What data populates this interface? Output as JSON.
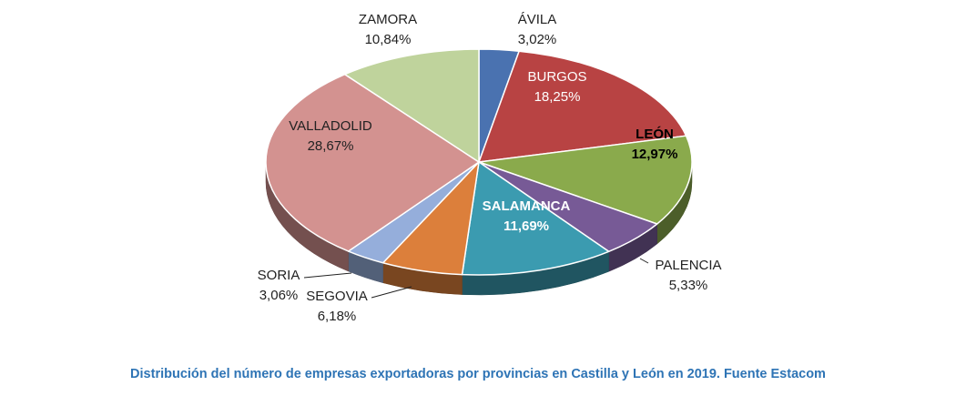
{
  "caption": "Distribución del número de empresas exportadoras por provincias en Castilla y León en 2019. Fuente Estacom",
  "chart_data": {
    "type": "pie",
    "style": "3d-exploded-label",
    "legend": "none",
    "slices": [
      {
        "name": "ÁVILA",
        "value": 3.02,
        "label": "3,02%",
        "color": "#4a72b0"
      },
      {
        "name": "BURGOS",
        "value": 18.25,
        "label": "18,25%",
        "color": "#b84343"
      },
      {
        "name": "LEÓN",
        "value": 12.97,
        "label": "12,97%",
        "color": "#8aaa4c"
      },
      {
        "name": "PALENCIA",
        "value": 5.33,
        "label": "5,33%",
        "color": "#775a96"
      },
      {
        "name": "SALAMANCA",
        "value": 11.69,
        "label": "11,69%",
        "color": "#3b9bb0"
      },
      {
        "name": "SEGOVIA",
        "value": 6.18,
        "label": "6,18%",
        "color": "#dc7f3b"
      },
      {
        "name": "SORIA",
        "value": 3.06,
        "label": "3,06%",
        "color": "#95aedb"
      },
      {
        "name": "VALLADOLID",
        "value": 28.67,
        "label": "28,67%",
        "color": "#d39290"
      },
      {
        "name": "ZAMORA",
        "value": 10.84,
        "label": "10,84%",
        "color": "#bfd39c"
      }
    ]
  }
}
